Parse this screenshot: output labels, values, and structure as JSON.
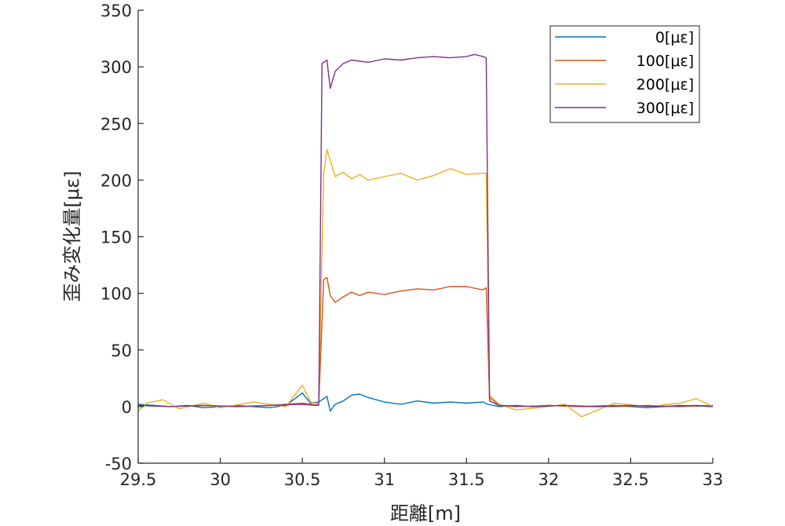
{
  "chart_data": {
    "type": "line",
    "xlabel": "距離[m]",
    "ylabel": "歪み変化量[με]",
    "xlim": [
      29.5,
      33
    ],
    "ylim": [
      -50,
      350
    ],
    "xticks": [
      "29.5",
      "30",
      "30.5",
      "31",
      "31.5",
      "32",
      "32.5",
      "33"
    ],
    "yticks": [
      "-50",
      "0",
      "50",
      "100",
      "150",
      "200",
      "250",
      "300",
      "350"
    ],
    "grid": false,
    "legend_position": "top-right",
    "series": [
      {
        "name": "0[με]",
        "color": "#0072BD",
        "x": [
          29.5,
          29.6,
          29.7,
          29.8,
          29.9,
          30.0,
          30.1,
          30.2,
          30.3,
          30.4,
          30.5,
          30.55,
          30.6,
          30.65,
          30.67,
          30.7,
          30.75,
          30.8,
          30.85,
          30.9,
          31.0,
          31.1,
          31.2,
          31.3,
          31.4,
          31.5,
          31.6,
          31.63,
          31.7,
          31.8,
          31.9,
          32.0,
          32.2,
          32.4,
          32.6,
          32.8,
          33.0
        ],
        "y": [
          2,
          1,
          0,
          1,
          -1,
          0,
          1,
          0,
          -1,
          1,
          12,
          3,
          4,
          9,
          -4,
          2,
          5,
          10,
          11,
          8,
          4,
          2,
          5,
          3,
          4,
          3,
          4,
          2,
          0,
          1,
          0,
          1,
          0,
          1,
          -1,
          1,
          0
        ]
      },
      {
        "name": "100[με]",
        "color": "#D95319",
        "x": [
          29.5,
          29.7,
          29.9,
          30.1,
          30.3,
          30.5,
          30.55,
          30.6,
          30.63,
          30.65,
          30.67,
          30.7,
          30.75,
          30.8,
          30.85,
          30.9,
          31.0,
          31.1,
          31.2,
          31.3,
          31.4,
          31.5,
          31.6,
          31.62,
          31.64,
          31.7,
          31.8,
          32.0,
          32.2,
          32.4,
          32.6,
          32.8,
          33.0
        ],
        "y": [
          1,
          0,
          1,
          0,
          1,
          3,
          2,
          1,
          112,
          114,
          98,
          92,
          97,
          101,
          98,
          101,
          99,
          102,
          104,
          103,
          106,
          106,
          103,
          105,
          8,
          1,
          0,
          1,
          0,
          0,
          1,
          0,
          1
        ]
      },
      {
        "name": "200[με]",
        "color": "#EDB120",
        "x": [
          29.5,
          29.55,
          29.65,
          29.75,
          29.9,
          30.0,
          30.2,
          30.4,
          30.5,
          30.55,
          30.6,
          30.63,
          30.65,
          30.7,
          30.75,
          30.8,
          30.85,
          30.9,
          31.0,
          31.1,
          31.2,
          31.3,
          31.4,
          31.5,
          31.6,
          31.62,
          31.64,
          31.7,
          31.8,
          32.0,
          32.1,
          32.2,
          32.4,
          32.6,
          32.8,
          32.9,
          33.0
        ],
        "y": [
          -4,
          3,
          6,
          -2,
          3,
          -1,
          4,
          0,
          19,
          4,
          2,
          205,
          227,
          203,
          207,
          201,
          205,
          200,
          203,
          206,
          200,
          204,
          210,
          205,
          206,
          206,
          10,
          2,
          -3,
          0,
          2,
          -9,
          3,
          0,
          3,
          7,
          0
        ]
      },
      {
        "name": "300[με]",
        "color": "#7E2F8E",
        "x": [
          29.5,
          29.7,
          29.9,
          30.1,
          30.3,
          30.5,
          30.58,
          30.6,
          30.62,
          30.65,
          30.67,
          30.7,
          30.75,
          30.8,
          30.9,
          31.0,
          31.1,
          31.2,
          31.3,
          31.4,
          31.5,
          31.55,
          31.6,
          31.62,
          31.64,
          31.7,
          31.9,
          32.1,
          32.3,
          32.5,
          32.7,
          32.9,
          33.0
        ],
        "y": [
          1,
          0,
          1,
          0,
          1,
          2,
          1,
          2,
          303,
          306,
          281,
          296,
          303,
          306,
          304,
          307,
          306,
          308,
          309,
          308,
          309,
          311,
          309,
          308,
          5,
          1,
          0,
          1,
          0,
          1,
          0,
          1,
          0
        ]
      }
    ]
  }
}
